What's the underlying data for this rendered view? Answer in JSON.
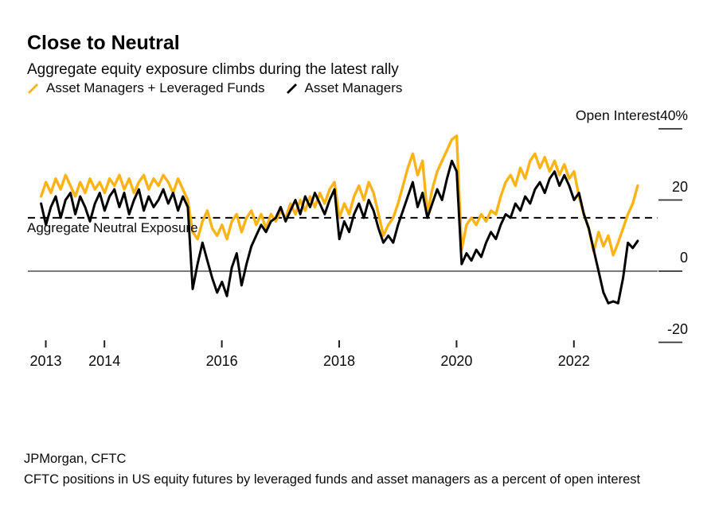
{
  "title": "Close to Neutral",
  "subtitle": "Aggregate equity exposure climbs during the latest rally",
  "legend": [
    {
      "label": "Asset Managers + Leveraged Funds",
      "color": "#000000",
      "icon": "slash-icon"
    },
    {
      "label": "Asset Managers",
      "color": "#FCB316",
      "icon": "slash-icon"
    }
  ],
  "axis_header_label": "Open Interest",
  "neutral_line_label": "Aggregate Neutral Exposure",
  "source": "JPMorgan, CFTC",
  "footnote": "CFTC positions in US equity futures by leveraged funds and asset managers as a percent of open interest",
  "chart_data": {
    "type": "line",
    "title": "Close to Neutral",
    "ylabel": "Open Interest (% of open interest)",
    "xlim": [
      2012.9,
      2023.3
    ],
    "ylim": [
      -25,
      45
    ],
    "grid": false,
    "legend_position": "top-left",
    "neutral_value": 15,
    "y_ticks": [
      {
        "value": 40,
        "label": "40%"
      },
      {
        "value": 20,
        "label": "20"
      },
      {
        "value": 0,
        "label": "0"
      },
      {
        "value": -20,
        "label": "-20"
      }
    ],
    "x_ticks": [
      {
        "year": 2013,
        "label": "2013"
      },
      {
        "year": 2014,
        "label": "2014"
      },
      {
        "year": 2016,
        "label": "2016"
      },
      {
        "year": 2018,
        "label": "2018"
      },
      {
        "year": 2020,
        "label": "2020"
      },
      {
        "year": 2022,
        "label": "2022"
      }
    ],
    "x_start_year": 2012.92,
    "x_step_years": 0.0833333,
    "series": [
      {
        "name": "Asset Managers",
        "color": "#FCB316",
        "width": 3.4,
        "values": [
          21,
          25,
          22,
          26,
          23,
          27,
          24,
          21,
          25,
          22,
          26,
          23,
          25,
          22,
          26,
          24,
          27,
          23,
          26,
          22,
          25,
          27,
          23,
          26,
          24,
          27,
          25,
          22,
          26,
          23,
          20,
          11,
          9,
          14,
          17,
          12,
          10,
          13,
          9,
          14,
          16,
          11,
          15,
          17,
          13,
          16,
          12,
          16,
          14,
          17,
          15,
          19,
          16,
          20,
          17,
          21,
          18,
          22,
          19,
          23,
          25,
          15,
          19,
          16,
          21,
          24,
          20,
          25,
          22,
          16,
          10,
          13,
          15,
          19,
          24,
          29,
          33,
          27,
          31,
          16,
          23,
          28,
          31,
          34,
          37,
          38,
          6,
          13,
          15,
          13,
          16,
          14,
          17,
          16,
          21,
          25,
          27,
          24,
          29,
          26,
          31,
          33,
          29,
          32,
          28,
          31,
          27,
          30,
          26,
          28,
          21,
          16,
          12,
          5.5,
          11,
          7,
          10,
          4.5,
          8,
          12,
          16,
          19,
          24
        ]
      },
      {
        "name": "Asset Managers + Leveraged Funds",
        "color": "#000000",
        "width": 3,
        "values": [
          19,
          13,
          18,
          21,
          15,
          20,
          22,
          16,
          21,
          18,
          14,
          19,
          22,
          17,
          21,
          23,
          18,
          22,
          16,
          20,
          23,
          17,
          21,
          18,
          20,
          23,
          19,
          22,
          17,
          21,
          18,
          -5,
          2,
          8,
          3,
          -2,
          -6,
          -3,
          -7,
          1,
          5,
          -4,
          2,
          7,
          10,
          13,
          11,
          14,
          15,
          18,
          14,
          17,
          20,
          16,
          21,
          18,
          22,
          19,
          16,
          20,
          23,
          9,
          14,
          11,
          16,
          19,
          15,
          20,
          17,
          12,
          8,
          10,
          8,
          13,
          17,
          21,
          25,
          18,
          22,
          15,
          19,
          23,
          20,
          26,
          31,
          28,
          2,
          5,
          3,
          6,
          4,
          8,
          11,
          9,
          13,
          16,
          15,
          19,
          17,
          21,
          19,
          23,
          25,
          22,
          26,
          28,
          24,
          27,
          24,
          20,
          22,
          16,
          12,
          6,
          0,
          -6,
          -9,
          -8.5,
          -9,
          -2,
          8,
          6.5,
          8.5
        ]
      }
    ]
  }
}
